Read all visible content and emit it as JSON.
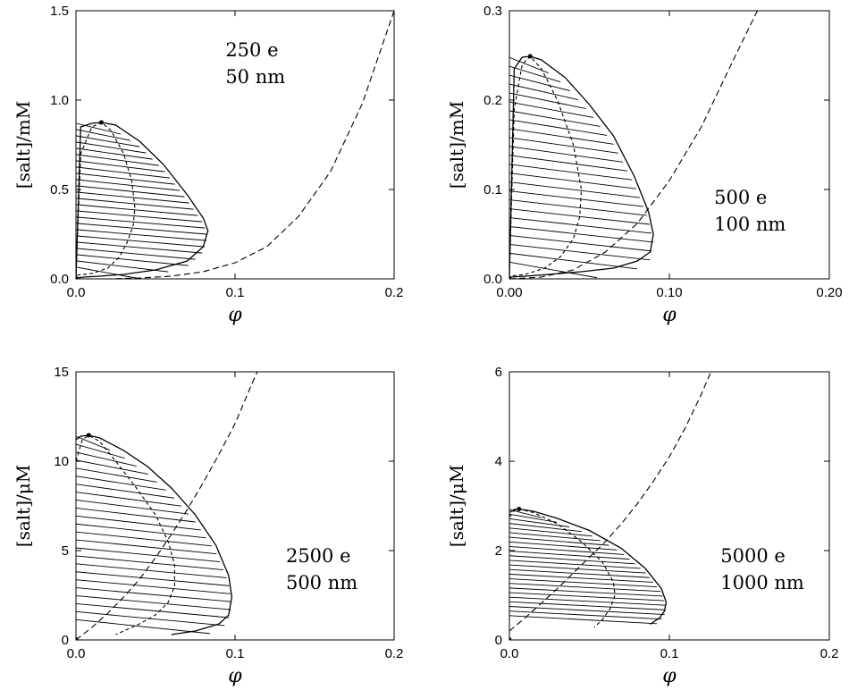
{
  "chart_data": [
    {
      "type": "line",
      "xlabel": "φ",
      "ylabel": "[salt]/mM",
      "xlim": [
        0,
        0.2
      ],
      "ylim": [
        0,
        1.5
      ],
      "xticks": [
        "0.0",
        "0.1",
        "0.2"
      ],
      "yticks": [
        "0.0",
        "0.5",
        "1.0",
        "1.5"
      ],
      "annotation": [
        "250 e",
        "50 nm"
      ],
      "annotation_pos": "upper-middle",
      "critical_point": {
        "x": 0.016,
        "y": 0.875
      },
      "series": [
        {
          "style": "solid",
          "x": [
            0.0,
            0.003,
            0.01,
            0.016,
            0.025,
            0.04,
            0.055,
            0.07,
            0.08,
            0.083,
            0.08,
            0.07,
            0.05,
            0.03,
            0.015,
            0.005,
            0.0
          ],
          "y": [
            0.0,
            0.85,
            0.87,
            0.875,
            0.86,
            0.77,
            0.64,
            0.47,
            0.34,
            0.27,
            0.18,
            0.1,
            0.05,
            0.025,
            0.015,
            0.01,
            0.005
          ]
        },
        {
          "style": "dotted",
          "x": [
            0.0,
            0.003,
            0.01,
            0.016,
            0.022,
            0.03,
            0.035,
            0.037,
            0.036,
            0.032,
            0.027,
            0.02,
            0.01,
            0.0
          ],
          "y": [
            0.03,
            0.7,
            0.85,
            0.875,
            0.83,
            0.7,
            0.55,
            0.4,
            0.3,
            0.2,
            0.12,
            0.06,
            0.03,
            0.02
          ]
        },
        {
          "style": "dashed",
          "x": [
            0.0,
            0.02,
            0.04,
            0.06,
            0.08,
            0.1,
            0.12,
            0.14,
            0.16,
            0.18,
            0.2
          ],
          "y": [
            0.0,
            0.0,
            0.005,
            0.015,
            0.04,
            0.09,
            0.18,
            0.35,
            0.6,
            0.98,
            1.5
          ]
        }
      ],
      "tie_lines": 24
    },
    {
      "type": "line",
      "xlabel": "φ",
      "ylabel": "[salt]/mM",
      "xlim": [
        0,
        0.2
      ],
      "ylim": [
        0,
        0.3
      ],
      "xticks": [
        "0.00",
        "0.10",
        "0.20"
      ],
      "yticks": [
        "0.0",
        "0.1",
        "0.2",
        "0.3"
      ],
      "annotation": [
        "500 e",
        "100 nm"
      ],
      "annotation_pos": "right-middle",
      "critical_point": {
        "x": 0.013,
        "y": 0.249
      },
      "series": [
        {
          "style": "solid",
          "x": [
            0.0,
            0.003,
            0.008,
            0.013,
            0.02,
            0.035,
            0.05,
            0.065,
            0.078,
            0.087,
            0.09,
            0.088,
            0.08,
            0.065,
            0.045,
            0.025,
            0.01,
            0.0
          ],
          "y": [
            0.0,
            0.235,
            0.248,
            0.249,
            0.245,
            0.225,
            0.195,
            0.16,
            0.115,
            0.075,
            0.05,
            0.03,
            0.02,
            0.012,
            0.008,
            0.005,
            0.003,
            0.002
          ]
        },
        {
          "style": "dotted",
          "x": [
            0.0,
            0.003,
            0.008,
            0.013,
            0.02,
            0.03,
            0.04,
            0.045,
            0.044,
            0.04,
            0.032,
            0.022,
            0.01,
            0.0
          ],
          "y": [
            0.005,
            0.19,
            0.24,
            0.249,
            0.235,
            0.2,
            0.15,
            0.1,
            0.07,
            0.045,
            0.025,
            0.012,
            0.005,
            0.003
          ]
        },
        {
          "style": "dashed",
          "x": [
            0.0,
            0.02,
            0.04,
            0.06,
            0.08,
            0.1,
            0.12,
            0.14,
            0.155
          ],
          "y": [
            0.0,
            0.002,
            0.01,
            0.03,
            0.062,
            0.11,
            0.17,
            0.245,
            0.3
          ]
        }
      ],
      "tie_lines": 24
    },
    {
      "type": "line",
      "xlabel": "φ",
      "ylabel": "[salt]/μM",
      "xlim": [
        0,
        0.2
      ],
      "ylim": [
        0,
        15
      ],
      "xticks": [
        "0.0",
        "0.1",
        "0.2"
      ],
      "yticks": [
        "0",
        "5",
        "10",
        "15"
      ],
      "annotation": [
        "2500 e",
        "500 nm"
      ],
      "annotation_pos": "lower-right",
      "critical_point": {
        "x": 0.008,
        "y": 11.45
      },
      "series": [
        {
          "style": "solid",
          "x": [
            0.0,
            0.003,
            0.008,
            0.015,
            0.03,
            0.045,
            0.06,
            0.075,
            0.088,
            0.096,
            0.098,
            0.096,
            0.09,
            0.075,
            0.06
          ],
          "y": [
            11.2,
            11.4,
            11.45,
            11.3,
            10.6,
            9.7,
            8.5,
            7.0,
            5.3,
            3.6,
            2.4,
            1.4,
            0.9,
            0.5,
            0.3
          ]
        },
        {
          "style": "dotted",
          "x": [
            0.0,
            0.004,
            0.008,
            0.015,
            0.025,
            0.038,
            0.05,
            0.058,
            0.062,
            0.062,
            0.058,
            0.05,
            0.04,
            0.03,
            0.025
          ],
          "y": [
            10.0,
            11.2,
            11.45,
            11.1,
            10.0,
            8.5,
            7.0,
            5.5,
            4.2,
            3.0,
            2.1,
            1.4,
            0.9,
            0.5,
            0.3
          ]
        },
        {
          "style": "dashed",
          "x": [
            0.0,
            0.01,
            0.02,
            0.03,
            0.04,
            0.05,
            0.06,
            0.07,
            0.08,
            0.09,
            0.1,
            0.11,
            0.114
          ],
          "y": [
            0.0,
            0.7,
            1.5,
            2.4,
            3.4,
            4.6,
            5.9,
            7.3,
            8.8,
            10.4,
            12.1,
            14.2,
            15.0
          ]
        }
      ],
      "tie_lines": 24
    },
    {
      "type": "line",
      "xlabel": "φ",
      "ylabel": "[salt]/μM",
      "xlim": [
        0,
        0.2
      ],
      "ylim": [
        0,
        6
      ],
      "xticks": [
        "0.0",
        "0.1",
        "0.2"
      ],
      "yticks": [
        "0",
        "2",
        "4",
        "6"
      ],
      "annotation": [
        "5000 e",
        "1000 nm"
      ],
      "annotation_pos": "lower-right",
      "critical_point": {
        "x": 0.006,
        "y": 2.93
      },
      "series": [
        {
          "style": "solid",
          "x": [
            0.0,
            0.003,
            0.006,
            0.015,
            0.03,
            0.05,
            0.07,
            0.085,
            0.095,
            0.098,
            0.097,
            0.094,
            0.088
          ],
          "y": [
            2.85,
            2.92,
            2.93,
            2.88,
            2.72,
            2.45,
            2.05,
            1.6,
            1.15,
            0.85,
            0.65,
            0.5,
            0.35
          ]
        },
        {
          "style": "dotted",
          "x": [
            0.0,
            0.003,
            0.006,
            0.015,
            0.03,
            0.045,
            0.058,
            0.065,
            0.066,
            0.063,
            0.058,
            0.053
          ],
          "y": [
            2.75,
            2.9,
            2.93,
            2.85,
            2.6,
            2.2,
            1.75,
            1.3,
            1.0,
            0.7,
            0.45,
            0.28
          ]
        },
        {
          "style": "dashed",
          "x": [
            0.0,
            0.01,
            0.02,
            0.03,
            0.04,
            0.05,
            0.06,
            0.07,
            0.08,
            0.09,
            0.1,
            0.11,
            0.12,
            0.126
          ],
          "y": [
            0.2,
            0.5,
            0.82,
            1.15,
            1.5,
            1.85,
            2.2,
            2.6,
            3.05,
            3.55,
            4.1,
            4.75,
            5.5,
            6.0
          ]
        }
      ],
      "tie_lines": 24
    }
  ]
}
